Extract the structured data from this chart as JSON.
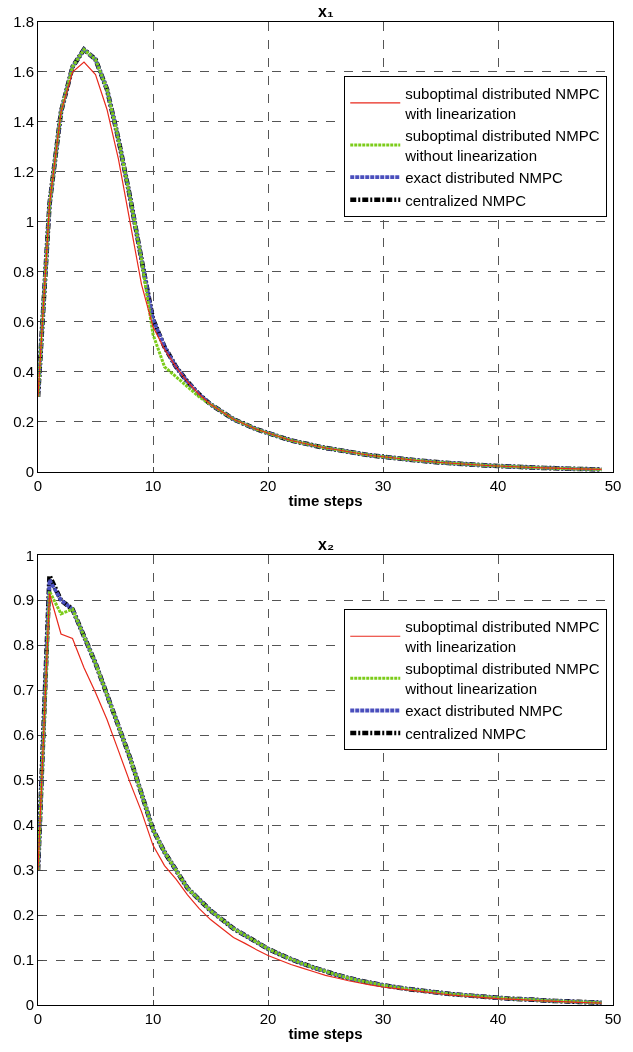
{
  "chart_data": [
    {
      "type": "line",
      "title": "x₁",
      "xlabel": "time steps",
      "x": [
        0,
        1,
        2,
        3,
        4,
        5,
        6,
        7,
        8,
        9,
        10,
        11,
        12,
        13,
        14,
        15,
        16,
        17,
        18,
        19,
        20,
        21,
        22,
        23,
        24,
        25,
        26,
        27,
        28,
        29,
        30,
        31,
        32,
        33,
        34,
        35,
        36,
        37,
        38,
        39,
        40,
        41,
        42,
        43,
        44,
        45,
        46,
        47,
        48,
        49
      ],
      "xlim": [
        0,
        50
      ],
      "xticks": [
        0,
        10,
        20,
        30,
        40,
        50
      ],
      "ylim": [
        0,
        1.8
      ],
      "yticks": [
        0,
        0.2,
        0.4,
        0.6,
        0.8,
        1,
        1.2,
        1.4,
        1.6,
        1.8
      ],
      "grid": true,
      "legend": "top right",
      "series": [
        {
          "name": "suboptimal distributed NMPC\nwith linearization",
          "color": "#e8291c",
          "line_style": "solid",
          "marker": "none",
          "values": [
            0.3,
            1.07,
            1.44,
            1.6,
            1.64,
            1.59,
            1.45,
            1.25,
            1.0,
            0.75,
            0.58,
            0.49,
            0.42,
            0.36,
            0.31,
            0.27,
            0.24,
            0.21,
            0.19,
            0.17,
            0.155,
            0.14,
            0.125,
            0.115,
            0.105,
            0.095,
            0.088,
            0.08,
            0.072,
            0.065,
            0.06,
            0.055,
            0.05,
            0.045,
            0.041,
            0.037,
            0.034,
            0.031,
            0.028,
            0.025,
            0.023,
            0.021,
            0.019,
            0.017,
            0.015,
            0.014,
            0.012,
            0.011,
            0.01,
            0.009
          ]
        },
        {
          "name": "suboptimal distributed NMPC\nwithout linearization",
          "color": "#7ccc1a",
          "line_style": "dotted",
          "values": [
            0.3,
            1.07,
            1.44,
            1.62,
            1.69,
            1.65,
            1.53,
            1.33,
            1.1,
            0.85,
            0.55,
            0.42,
            0.38,
            0.34,
            0.3,
            0.27,
            0.24,
            0.21,
            0.19,
            0.17,
            0.155,
            0.14,
            0.125,
            0.115,
            0.105,
            0.095,
            0.088,
            0.08,
            0.072,
            0.065,
            0.06,
            0.055,
            0.05,
            0.045,
            0.041,
            0.037,
            0.034,
            0.031,
            0.028,
            0.025,
            0.023,
            0.021,
            0.019,
            0.017,
            0.015,
            0.014,
            0.012,
            0.011,
            0.01,
            0.009
          ]
        },
        {
          "name": "exact distributed NMPC",
          "color": "#4a4fbd",
          "line_style": "dashed",
          "values": [
            0.3,
            1.07,
            1.44,
            1.62,
            1.69,
            1.65,
            1.53,
            1.33,
            1.1,
            0.85,
            0.61,
            0.5,
            0.42,
            0.36,
            0.31,
            0.27,
            0.24,
            0.21,
            0.19,
            0.17,
            0.155,
            0.14,
            0.125,
            0.115,
            0.105,
            0.095,
            0.088,
            0.08,
            0.072,
            0.065,
            0.06,
            0.055,
            0.05,
            0.045,
            0.041,
            0.037,
            0.034,
            0.031,
            0.028,
            0.025,
            0.023,
            0.021,
            0.019,
            0.017,
            0.015,
            0.014,
            0.012,
            0.011,
            0.01,
            0.009
          ]
        },
        {
          "name": "centralized NMPC",
          "color": "#000000",
          "line_style": "dashdot",
          "values": [
            0.3,
            1.07,
            1.44,
            1.62,
            1.69,
            1.65,
            1.53,
            1.33,
            1.1,
            0.85,
            0.61,
            0.5,
            0.42,
            0.36,
            0.31,
            0.27,
            0.24,
            0.21,
            0.19,
            0.17,
            0.155,
            0.14,
            0.125,
            0.115,
            0.105,
            0.095,
            0.088,
            0.08,
            0.072,
            0.065,
            0.06,
            0.055,
            0.05,
            0.045,
            0.041,
            0.037,
            0.034,
            0.031,
            0.028,
            0.025,
            0.023,
            0.021,
            0.019,
            0.017,
            0.015,
            0.014,
            0.012,
            0.011,
            0.01,
            0.009
          ]
        }
      ]
    },
    {
      "type": "line",
      "title": "x₂",
      "xlabel": "time steps",
      "x": [
        0,
        1,
        2,
        3,
        4,
        5,
        6,
        7,
        8,
        9,
        10,
        11,
        12,
        13,
        14,
        15,
        16,
        17,
        18,
        19,
        20,
        21,
        22,
        23,
        24,
        25,
        26,
        27,
        28,
        29,
        30,
        31,
        32,
        33,
        34,
        35,
        36,
        37,
        38,
        39,
        40,
        41,
        42,
        43,
        44,
        45,
        46,
        47,
        48,
        49
      ],
      "xlim": [
        0,
        50
      ],
      "xticks": [
        0,
        10,
        20,
        30,
        40,
        50
      ],
      "ylim": [
        0,
        1
      ],
      "yticks": [
        0,
        0.1,
        0.2,
        0.3,
        0.4,
        0.5,
        0.6,
        0.7,
        0.8,
        0.9,
        1
      ],
      "grid": true,
      "legend": "top right",
      "series": [
        {
          "name": "suboptimal distributed NMPC\nwith linearization",
          "color": "#e8291c",
          "line_style": "solid",
          "marker": "none",
          "values": [
            0.3,
            0.915,
            0.825,
            0.815,
            0.75,
            0.695,
            0.635,
            0.565,
            0.495,
            0.43,
            0.355,
            0.31,
            0.28,
            0.245,
            0.215,
            0.19,
            0.17,
            0.15,
            0.137,
            0.123,
            0.11,
            0.1,
            0.09,
            0.082,
            0.074,
            0.066,
            0.06,
            0.054,
            0.049,
            0.044,
            0.04,
            0.037,
            0.034,
            0.031,
            0.028,
            0.025,
            0.022,
            0.02,
            0.018,
            0.016,
            0.014,
            0.013,
            0.012,
            0.01,
            0.009,
            0.008,
            0.007,
            0.006,
            0.005,
            0.004
          ]
        },
        {
          "name": "suboptimal distributed NMPC\nwithout linearization",
          "color": "#7ccc1a",
          "line_style": "dotted",
          "values": [
            0.3,
            0.92,
            0.87,
            0.88,
            0.82,
            0.76,
            0.69,
            0.62,
            0.55,
            0.47,
            0.39,
            0.34,
            0.3,
            0.26,
            0.235,
            0.21,
            0.19,
            0.17,
            0.155,
            0.14,
            0.125,
            0.113,
            0.102,
            0.092,
            0.083,
            0.075,
            0.067,
            0.06,
            0.054,
            0.049,
            0.044,
            0.04,
            0.036,
            0.033,
            0.03,
            0.027,
            0.024,
            0.022,
            0.02,
            0.018,
            0.016,
            0.014,
            0.013,
            0.012,
            0.01,
            0.009,
            0.008,
            0.007,
            0.006,
            0.005
          ]
        },
        {
          "name": "exact distributed NMPC",
          "color": "#4a4fbd",
          "line_style": "dashed",
          "values": [
            0.3,
            0.945,
            0.9,
            0.88,
            0.82,
            0.76,
            0.69,
            0.62,
            0.55,
            0.47,
            0.39,
            0.34,
            0.3,
            0.26,
            0.235,
            0.21,
            0.19,
            0.17,
            0.155,
            0.14,
            0.125,
            0.113,
            0.102,
            0.092,
            0.083,
            0.075,
            0.067,
            0.06,
            0.054,
            0.049,
            0.044,
            0.04,
            0.036,
            0.033,
            0.03,
            0.027,
            0.024,
            0.022,
            0.02,
            0.018,
            0.016,
            0.014,
            0.013,
            0.012,
            0.01,
            0.009,
            0.008,
            0.007,
            0.006,
            0.005
          ]
        },
        {
          "name": "centralized NMPC",
          "color": "#000000",
          "line_style": "dashdot",
          "values": [
            0.3,
            0.955,
            0.9,
            0.88,
            0.82,
            0.76,
            0.69,
            0.62,
            0.55,
            0.47,
            0.39,
            0.34,
            0.3,
            0.26,
            0.235,
            0.21,
            0.19,
            0.17,
            0.155,
            0.14,
            0.125,
            0.113,
            0.102,
            0.092,
            0.083,
            0.075,
            0.067,
            0.06,
            0.054,
            0.049,
            0.044,
            0.04,
            0.036,
            0.033,
            0.03,
            0.027,
            0.024,
            0.022,
            0.02,
            0.018,
            0.016,
            0.014,
            0.013,
            0.012,
            0.01,
            0.009,
            0.008,
            0.007,
            0.006,
            0.005
          ]
        }
      ]
    }
  ]
}
